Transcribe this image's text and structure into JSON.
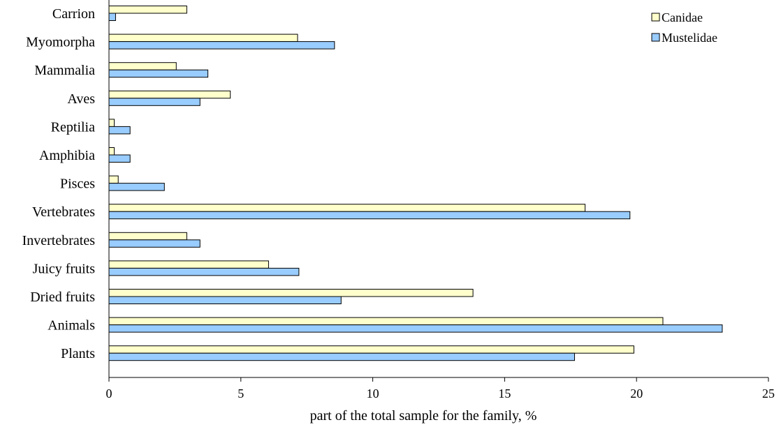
{
  "chart_data": {
    "type": "bar",
    "orientation": "horizontal",
    "categories": [
      "Carrion",
      "Myomorpha",
      "Mammalia",
      "Aves",
      "Reptilia",
      "Amphibia",
      "Pisces",
      "Vertebrates",
      "Invertebrates",
      "Juicy fruits",
      "Dried fruits",
      "Animals",
      "Plants"
    ],
    "series": [
      {
        "name": "Canidae",
        "color": "#ffffcc",
        "values": [
          2.95,
          7.15,
          2.55,
          4.6,
          0.2,
          0.2,
          0.35,
          18.05,
          2.95,
          6.05,
          13.8,
          21.0,
          19.9
        ]
      },
      {
        "name": "Mustelidae",
        "color": "#99ccff",
        "values": [
          0.25,
          8.55,
          3.75,
          3.45,
          0.8,
          0.8,
          2.1,
          19.75,
          3.45,
          7.2,
          8.8,
          23.25,
          17.65
        ]
      }
    ],
    "xlabel": "part of the total sample for the family, %",
    "xlim": [
      0,
      25
    ],
    "xticks": [
      0,
      5,
      10,
      15,
      20,
      25
    ],
    "grid": false,
    "legend": "top-right"
  }
}
